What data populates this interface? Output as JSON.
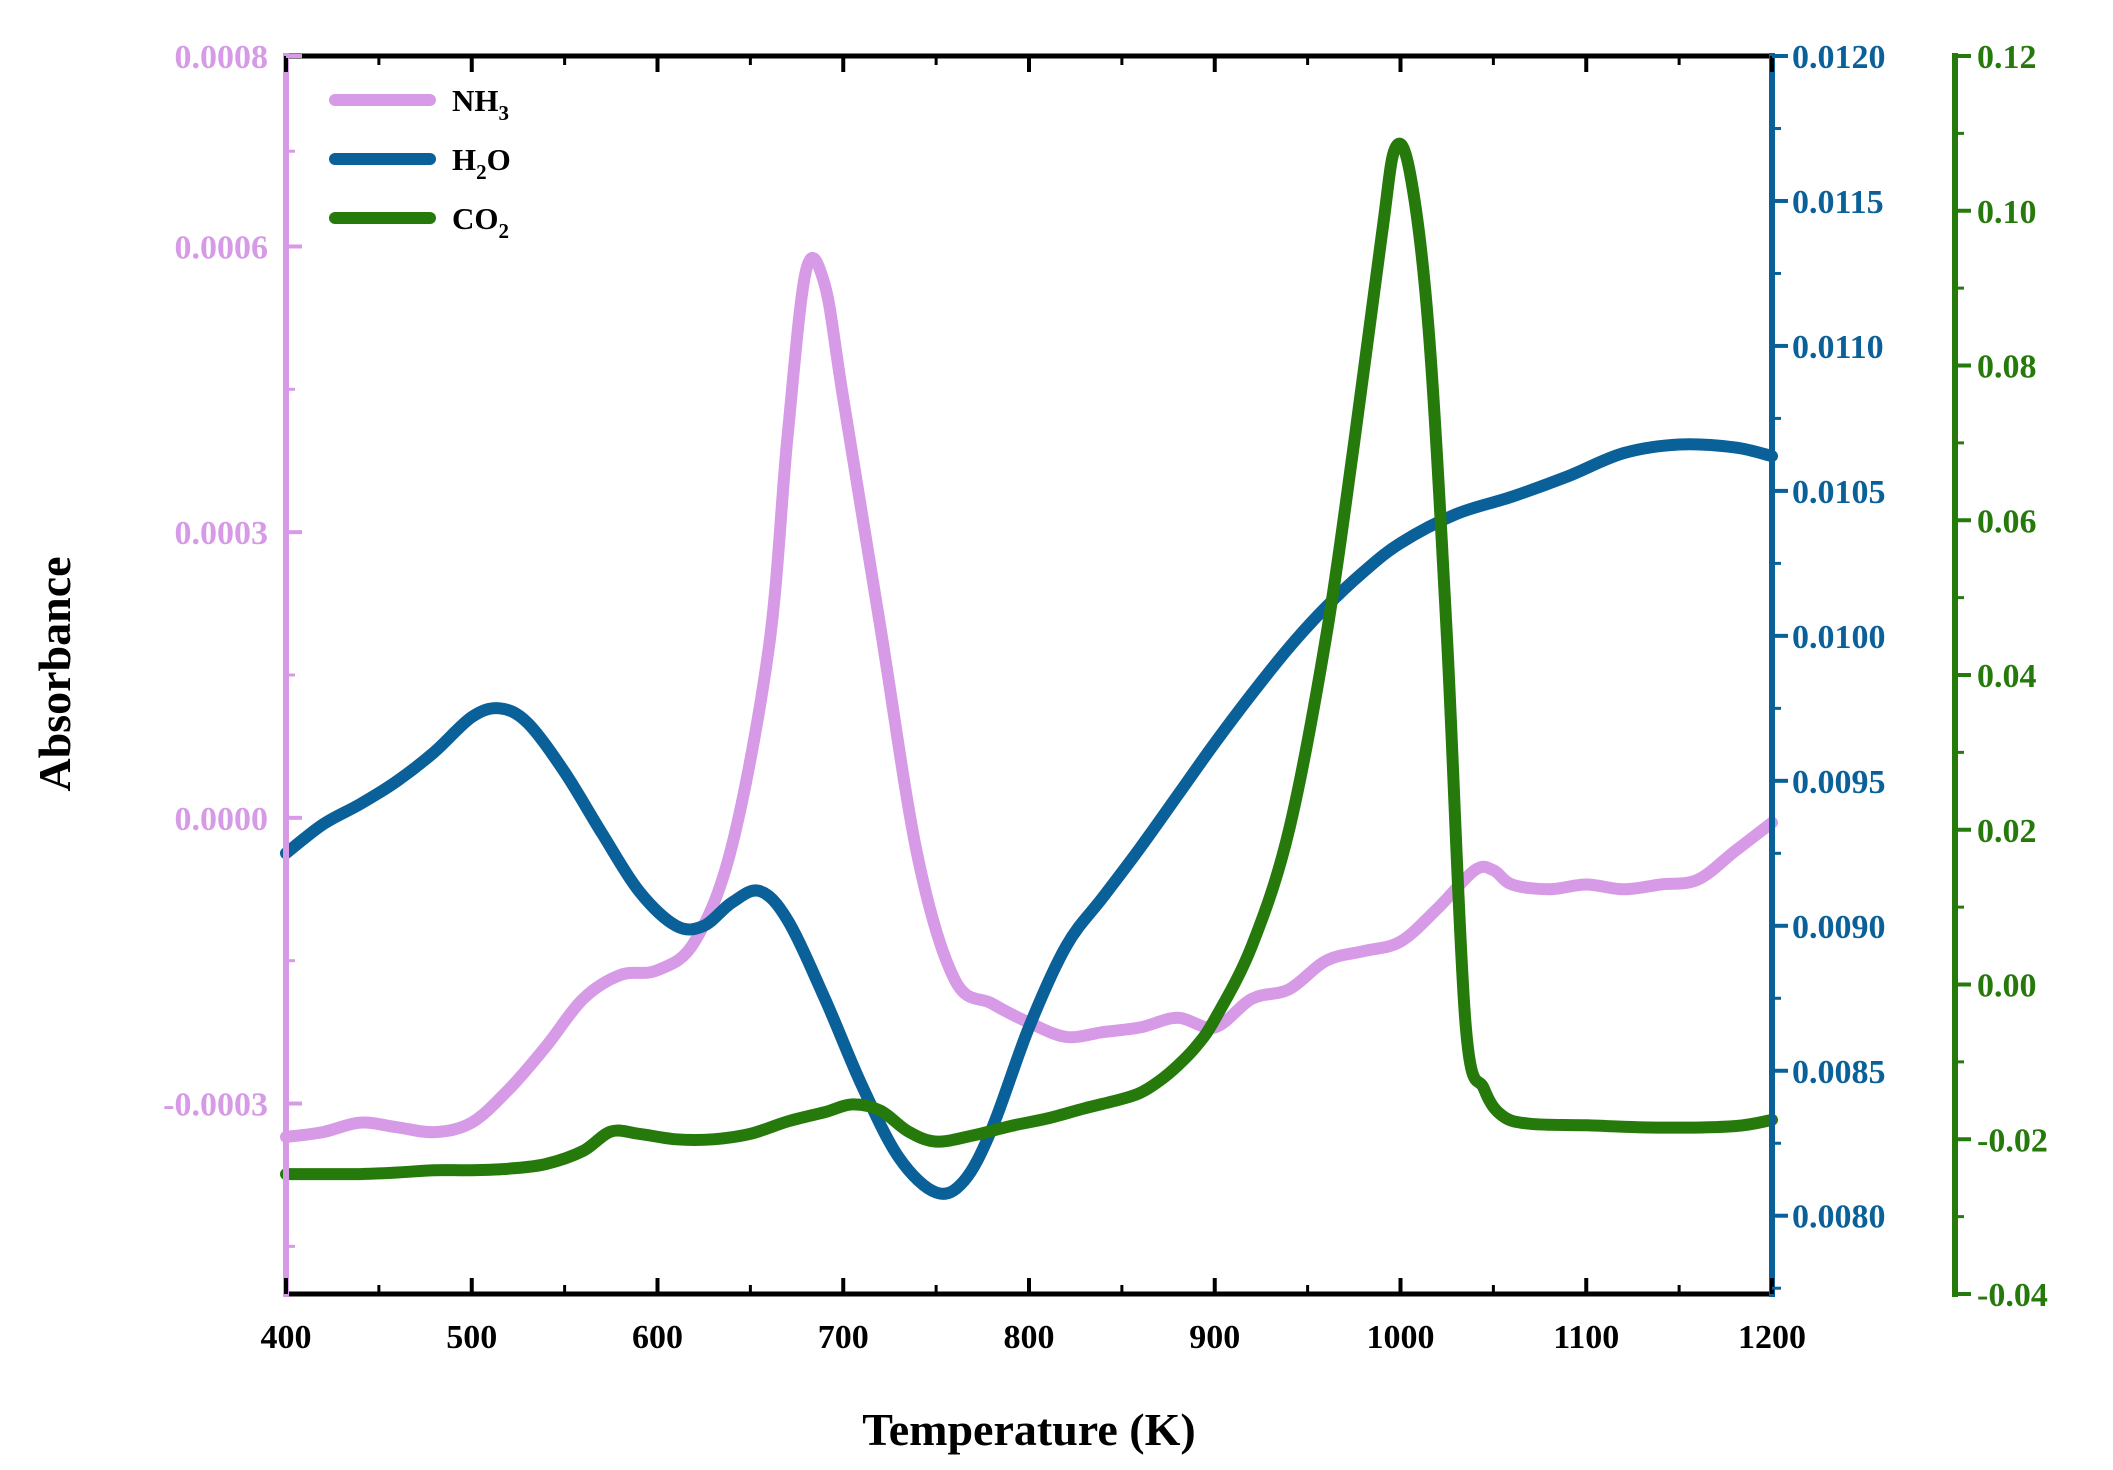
{
  "chart_data": {
    "type": "line",
    "title": "",
    "xlabel": "Temperature (K)",
    "ylabel": "Absorbance",
    "xlim": [
      400,
      1200
    ],
    "x_ticks": [
      "400",
      "500",
      "600",
      "700",
      "800",
      "900",
      "1000",
      "1100",
      "1200"
    ],
    "axes": {
      "NH3": {
        "range": [
          -0.0005,
          0.0008
        ],
        "ticks": [
          {
            "value": -0.0003,
            "label": "-0.0003"
          },
          {
            "value": 0.0,
            "label": "0.0000"
          },
          {
            "value": 0.0003,
            "label": "0.0003"
          },
          {
            "value": 0.0006,
            "label": "0.0006"
          },
          {
            "value": 0.0008,
            "label": "0.0008"
          }
        ]
      },
      "H2O": {
        "range": [
          0.00773,
          0.012
        ],
        "ticks": [
          {
            "value": 0.008,
            "label": "0.0080"
          },
          {
            "value": 0.0085,
            "label": "0.0085"
          },
          {
            "value": 0.009,
            "label": "0.0090"
          },
          {
            "value": 0.0095,
            "label": "0.0095"
          },
          {
            "value": 0.01,
            "label": "0.0100"
          },
          {
            "value": 0.0105,
            "label": "0.0105"
          },
          {
            "value": 0.011,
            "label": "0.0110"
          },
          {
            "value": 0.0115,
            "label": "0.0115"
          },
          {
            "value": 0.012,
            "label": "0.0120"
          }
        ]
      },
      "CO2": {
        "range": [
          -0.04,
          0.12
        ],
        "ticks": [
          {
            "value": -0.04,
            "label": "-0.04"
          },
          {
            "value": -0.02,
            "label": "-0.02"
          },
          {
            "value": 0.0,
            "label": "0.00"
          },
          {
            "value": 0.02,
            "label": "0.02"
          },
          {
            "value": 0.04,
            "label": "0.04"
          },
          {
            "value": 0.06,
            "label": "0.06"
          },
          {
            "value": 0.08,
            "label": "0.08"
          },
          {
            "value": 0.1,
            "label": "0.10"
          },
          {
            "value": 0.12,
            "label": "0.12"
          }
        ]
      }
    },
    "series": [
      {
        "name": "NH3",
        "legend_main": "NH",
        "legend_sub": "3",
        "legend_tail": "",
        "color": "#d79ae6",
        "axis": "NH3",
        "x": [
          400,
          420,
          440,
          460,
          480,
          500,
          520,
          540,
          560,
          580,
          600,
          620,
          640,
          660,
          670,
          680,
          690,
          700,
          720,
          740,
          760,
          780,
          800,
          820,
          840,
          860,
          880,
          900,
          920,
          940,
          960,
          980,
          1000,
          1020,
          1040,
          1050,
          1060,
          1080,
          1100,
          1120,
          1140,
          1160,
          1180,
          1200
        ],
        "values": [
          -0.000335,
          -0.00033,
          -0.00032,
          -0.000325,
          -0.00033,
          -0.00032,
          -0.000285,
          -0.00024,
          -0.00019,
          -0.000165,
          -0.00016,
          -0.00013,
          -3e-05,
          0.00018,
          0.0004,
          0.000575,
          0.00056,
          0.00044,
          0.0002,
          -4e-05,
          -0.00017,
          -0.000195,
          -0.000215,
          -0.00023,
          -0.000225,
          -0.00022,
          -0.00021,
          -0.00022,
          -0.00019,
          -0.00018,
          -0.00015,
          -0.00014,
          -0.00013,
          -9.5e-05,
          -5.5e-05,
          -5.5e-05,
          -7e-05,
          -7.5e-05,
          -7e-05,
          -7.5e-05,
          -7e-05,
          -6.5e-05,
          -3.5e-05,
          -5e-06
        ]
      },
      {
        "name": "H2O",
        "legend_main": "H",
        "legend_sub": "2",
        "legend_tail": "O",
        "color": "#0a6098",
        "axis": "H2O",
        "x": [
          400,
          420,
          440,
          460,
          480,
          500,
          515,
          530,
          550,
          570,
          590,
          610,
          625,
          640,
          655,
          670,
          690,
          710,
          730,
          750,
          765,
          780,
          800,
          820,
          840,
          860,
          880,
          900,
          920,
          940,
          960,
          980,
          1000,
          1030,
          1060,
          1090,
          1120,
          1150,
          1180,
          1200
        ],
        "values": [
          0.00925,
          0.00935,
          0.00942,
          0.0095,
          0.0096,
          0.00972,
          0.00975,
          0.0097,
          0.00953,
          0.00932,
          0.00912,
          0.009,
          0.009,
          0.00908,
          0.00912,
          0.00902,
          0.00875,
          0.00845,
          0.0082,
          0.00808,
          0.00812,
          0.0083,
          0.00865,
          0.00893,
          0.0091,
          0.00927,
          0.00945,
          0.00963,
          0.0098,
          0.00996,
          0.0101,
          0.01022,
          0.01032,
          0.01042,
          0.01048,
          0.01055,
          0.01063,
          0.01066,
          0.01065,
          0.01062
        ]
      },
      {
        "name": "CO2",
        "legend_main": "CO",
        "legend_sub": "2",
        "legend_tail": "",
        "color": "#267a0c",
        "axis": "CO2",
        "x": [
          400,
          420,
          440,
          460,
          480,
          500,
          520,
          540,
          560,
          575,
          590,
          610,
          630,
          650,
          670,
          690,
          705,
          720,
          735,
          750,
          770,
          790,
          810,
          830,
          850,
          860,
          870,
          880,
          890,
          900,
          920,
          940,
          960,
          975,
          990,
          997,
          1005,
          1015,
          1025,
          1035,
          1045,
          1055,
          1070,
          1100,
          1140,
          1180,
          1200
        ],
        "values": [
          -0.0245,
          -0.0245,
          -0.0245,
          -0.0243,
          -0.024,
          -0.024,
          -0.0238,
          -0.0232,
          -0.0215,
          -0.019,
          -0.0193,
          -0.02,
          -0.02,
          -0.0193,
          -0.0177,
          -0.0165,
          -0.0155,
          -0.0163,
          -0.019,
          -0.0203,
          -0.0195,
          -0.0183,
          -0.0173,
          -0.016,
          -0.0148,
          -0.014,
          -0.0125,
          -0.0105,
          -0.008,
          -0.0045,
          0.005,
          0.02,
          0.045,
          0.07,
          0.097,
          0.108,
          0.105,
          0.085,
          0.045,
          -0.005,
          -0.0135,
          -0.017,
          -0.018,
          -0.0182,
          -0.0185,
          -0.0183,
          -0.0175
        ]
      }
    ]
  }
}
